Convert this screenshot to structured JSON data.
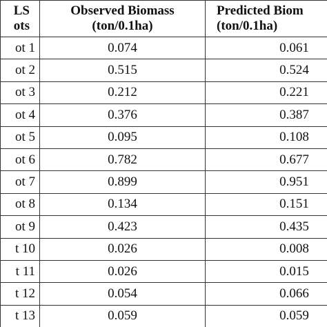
{
  "table": {
    "header": [
      [
        "LS",
        "ots"
      ],
      [
        "Observed Biomass",
        "(ton/0.1ha)"
      ],
      [
        "Predicted Biom",
        "(ton/0.1ha)"
      ]
    ],
    "rows": [
      [
        "ot 1",
        "0.074",
        "0.061"
      ],
      [
        "ot 2",
        "0.515",
        "0.524"
      ],
      [
        "ot 3",
        "0.212",
        "0.221"
      ],
      [
        "ot 4",
        "0.376",
        "0.387"
      ],
      [
        "ot 5",
        "0.095",
        "0.108"
      ],
      [
        "ot 6",
        "0.782",
        "0.677"
      ],
      [
        "ot 7",
        "0.899",
        "0.951"
      ],
      [
        "ot 8",
        "0.134",
        "0.151"
      ],
      [
        "ot 9",
        "0.423",
        "0.435"
      ],
      [
        "t 10",
        "0.026",
        "0.008"
      ],
      [
        "t 11",
        "0.026",
        "0.015"
      ],
      [
        "t 12",
        "0.054",
        "0.066"
      ],
      [
        "t 13",
        "0.059",
        "0.059"
      ]
    ]
  }
}
